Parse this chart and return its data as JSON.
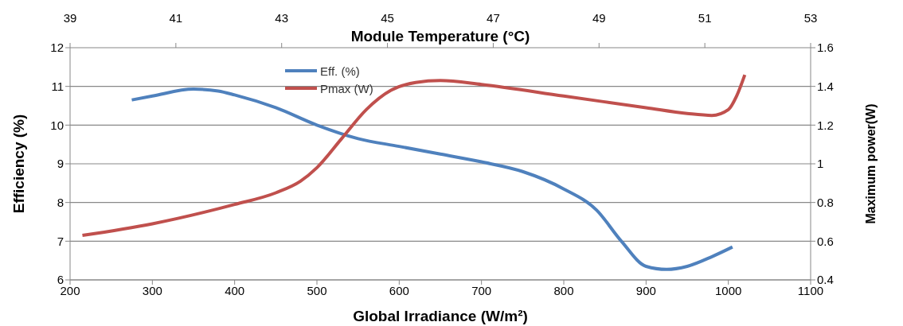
{
  "chart_data": {
    "type": "line",
    "xlabel": "Global Irradiance (W/m²)",
    "x2label": "Module Temperature (°C)",
    "ylabel": "Efficiency (%)",
    "y2label": "Maximum power(W)",
    "xlim": [
      200,
      1100
    ],
    "xticks": [
      200,
      300,
      400,
      500,
      600,
      700,
      800,
      900,
      1000,
      1100
    ],
    "x2lim": [
      39,
      53
    ],
    "x2ticks": [
      39,
      41,
      43,
      45,
      47,
      49,
      51,
      53
    ],
    "ylim": [
      6,
      12
    ],
    "yticks": [
      6,
      7,
      8,
      9,
      10,
      11,
      12
    ],
    "y2lim": [
      0.4,
      1.6
    ],
    "y2ticks": [
      0.4,
      0.6,
      0.8,
      1,
      1.2,
      1.4,
      1.6
    ],
    "grid": "y",
    "legend": "top",
    "marker": "none",
    "line_style": "solid",
    "series": [
      {
        "name": "Eff. (%)",
        "color": "#4f81bd",
        "x": [
          275,
          300,
          350,
          380,
          400,
          450,
          500,
          550,
          600,
          650,
          700,
          750,
          800,
          840,
          870,
          900,
          925,
          950,
          980,
          1005
        ],
        "values": [
          10.65,
          10.75,
          10.93,
          10.88,
          10.78,
          10.45,
          10.0,
          9.65,
          9.45,
          9.25,
          9.05,
          8.8,
          8.35,
          7.8,
          7.0,
          6.35,
          6.27,
          6.35,
          6.6,
          6.85
        ]
      },
      {
        "name": "Pmax (W)",
        "color": "#c0504d",
        "axis": "y2",
        "x": [
          215,
          300,
          400,
          450,
          480,
          500,
          530,
          560,
          590,
          620,
          650,
          700,
          800,
          900,
          950,
          980,
          1000,
          1010,
          1020
        ],
        "values": [
          0.63,
          0.69,
          0.79,
          0.85,
          0.91,
          0.98,
          1.13,
          1.28,
          1.38,
          1.42,
          1.43,
          1.41,
          1.35,
          1.29,
          1.26,
          1.25,
          1.28,
          1.35,
          1.46
        ]
      }
    ]
  }
}
